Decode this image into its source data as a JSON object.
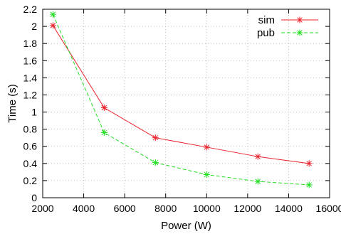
{
  "chart_data": {
    "type": "line",
    "xlabel": "Power (W)",
    "ylabel": "Time (s)",
    "xlim": [
      2000,
      16000
    ],
    "ylim": [
      0,
      2.2
    ],
    "x_ticks": [
      "2000",
      "4000",
      "6000",
      "8000",
      "10000",
      "12000",
      "14000",
      "16000"
    ],
    "y_ticks": [
      "0",
      "0.2",
      "0.4",
      "0.6",
      "0.8",
      "1",
      "1.2",
      "1.4",
      "1.6",
      "1.8",
      "2",
      "2.2"
    ],
    "x_tick_values": [
      2000,
      4000,
      6000,
      8000,
      10000,
      12000,
      14000,
      16000
    ],
    "y_tick_values": [
      0,
      0.2,
      0.4,
      0.6,
      0.8,
      1,
      1.2,
      1.4,
      1.6,
      1.8,
      2,
      2.2
    ],
    "grid": true,
    "legend_position": "top-right",
    "series": [
      {
        "name": "sim",
        "color": "#e8202a",
        "line_style": "solid",
        "marker": "asterisk",
        "x": [
          2500,
          5000,
          7500,
          10000,
          12500,
          15000
        ],
        "y": [
          2.01,
          1.05,
          0.7,
          0.59,
          0.48,
          0.4
        ]
      },
      {
        "name": "pub",
        "color": "#22dd22",
        "line_style": "dashed",
        "marker": "asterisk",
        "x": [
          2500,
          5000,
          7500,
          10000,
          12500,
          15000
        ],
        "y": [
          2.14,
          0.76,
          0.41,
          0.27,
          0.19,
          0.15
        ]
      }
    ]
  }
}
